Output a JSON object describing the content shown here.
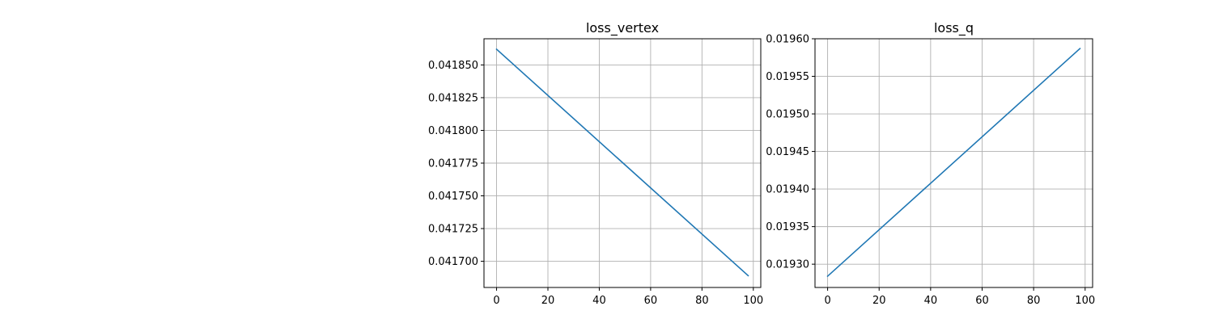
{
  "chart_data": [
    {
      "type": "line",
      "title": "loss_vertex",
      "xlabel": "",
      "ylabel": "",
      "grid": true,
      "xlim": [
        -4.9,
        102.9
      ],
      "ylim": [
        0.04168,
        0.04187
      ],
      "xticks": [
        0,
        20,
        40,
        60,
        80,
        100
      ],
      "xtick_labels": [
        "0",
        "20",
        "40",
        "60",
        "80",
        "100"
      ],
      "yticks": [
        0.0417,
        0.041725,
        0.04175,
        0.041775,
        0.0418,
        0.041825,
        0.04185
      ],
      "ytick_labels": [
        "0.041700",
        "0.041725",
        "0.041750",
        "0.041775",
        "0.041800",
        "0.041825",
        "0.041850"
      ],
      "series": [
        {
          "color": "#1f77b4",
          "x": [
            0,
            98
          ],
          "y": [
            0.041862,
            0.041689
          ]
        }
      ]
    },
    {
      "type": "line",
      "title": "loss_q",
      "xlabel": "",
      "ylabel": "",
      "grid": true,
      "xlim": [
        -4.9,
        102.9
      ],
      "ylim": [
        0.019269,
        0.0196
      ],
      "xticks": [
        0,
        20,
        40,
        60,
        80,
        100
      ],
      "xtick_labels": [
        "0",
        "20",
        "40",
        "60",
        "80",
        "100"
      ],
      "yticks": [
        0.0193,
        0.01935,
        0.0194,
        0.01945,
        0.0195,
        0.01955,
        0.0196
      ],
      "ytick_labels": [
        "0.01930",
        "0.01935",
        "0.01940",
        "0.01945",
        "0.01950",
        "0.01955",
        "0.01960"
      ],
      "series": [
        {
          "color": "#1f77b4",
          "x": [
            0,
            98
          ],
          "y": [
            0.019284,
            0.019587
          ]
        }
      ]
    }
  ]
}
